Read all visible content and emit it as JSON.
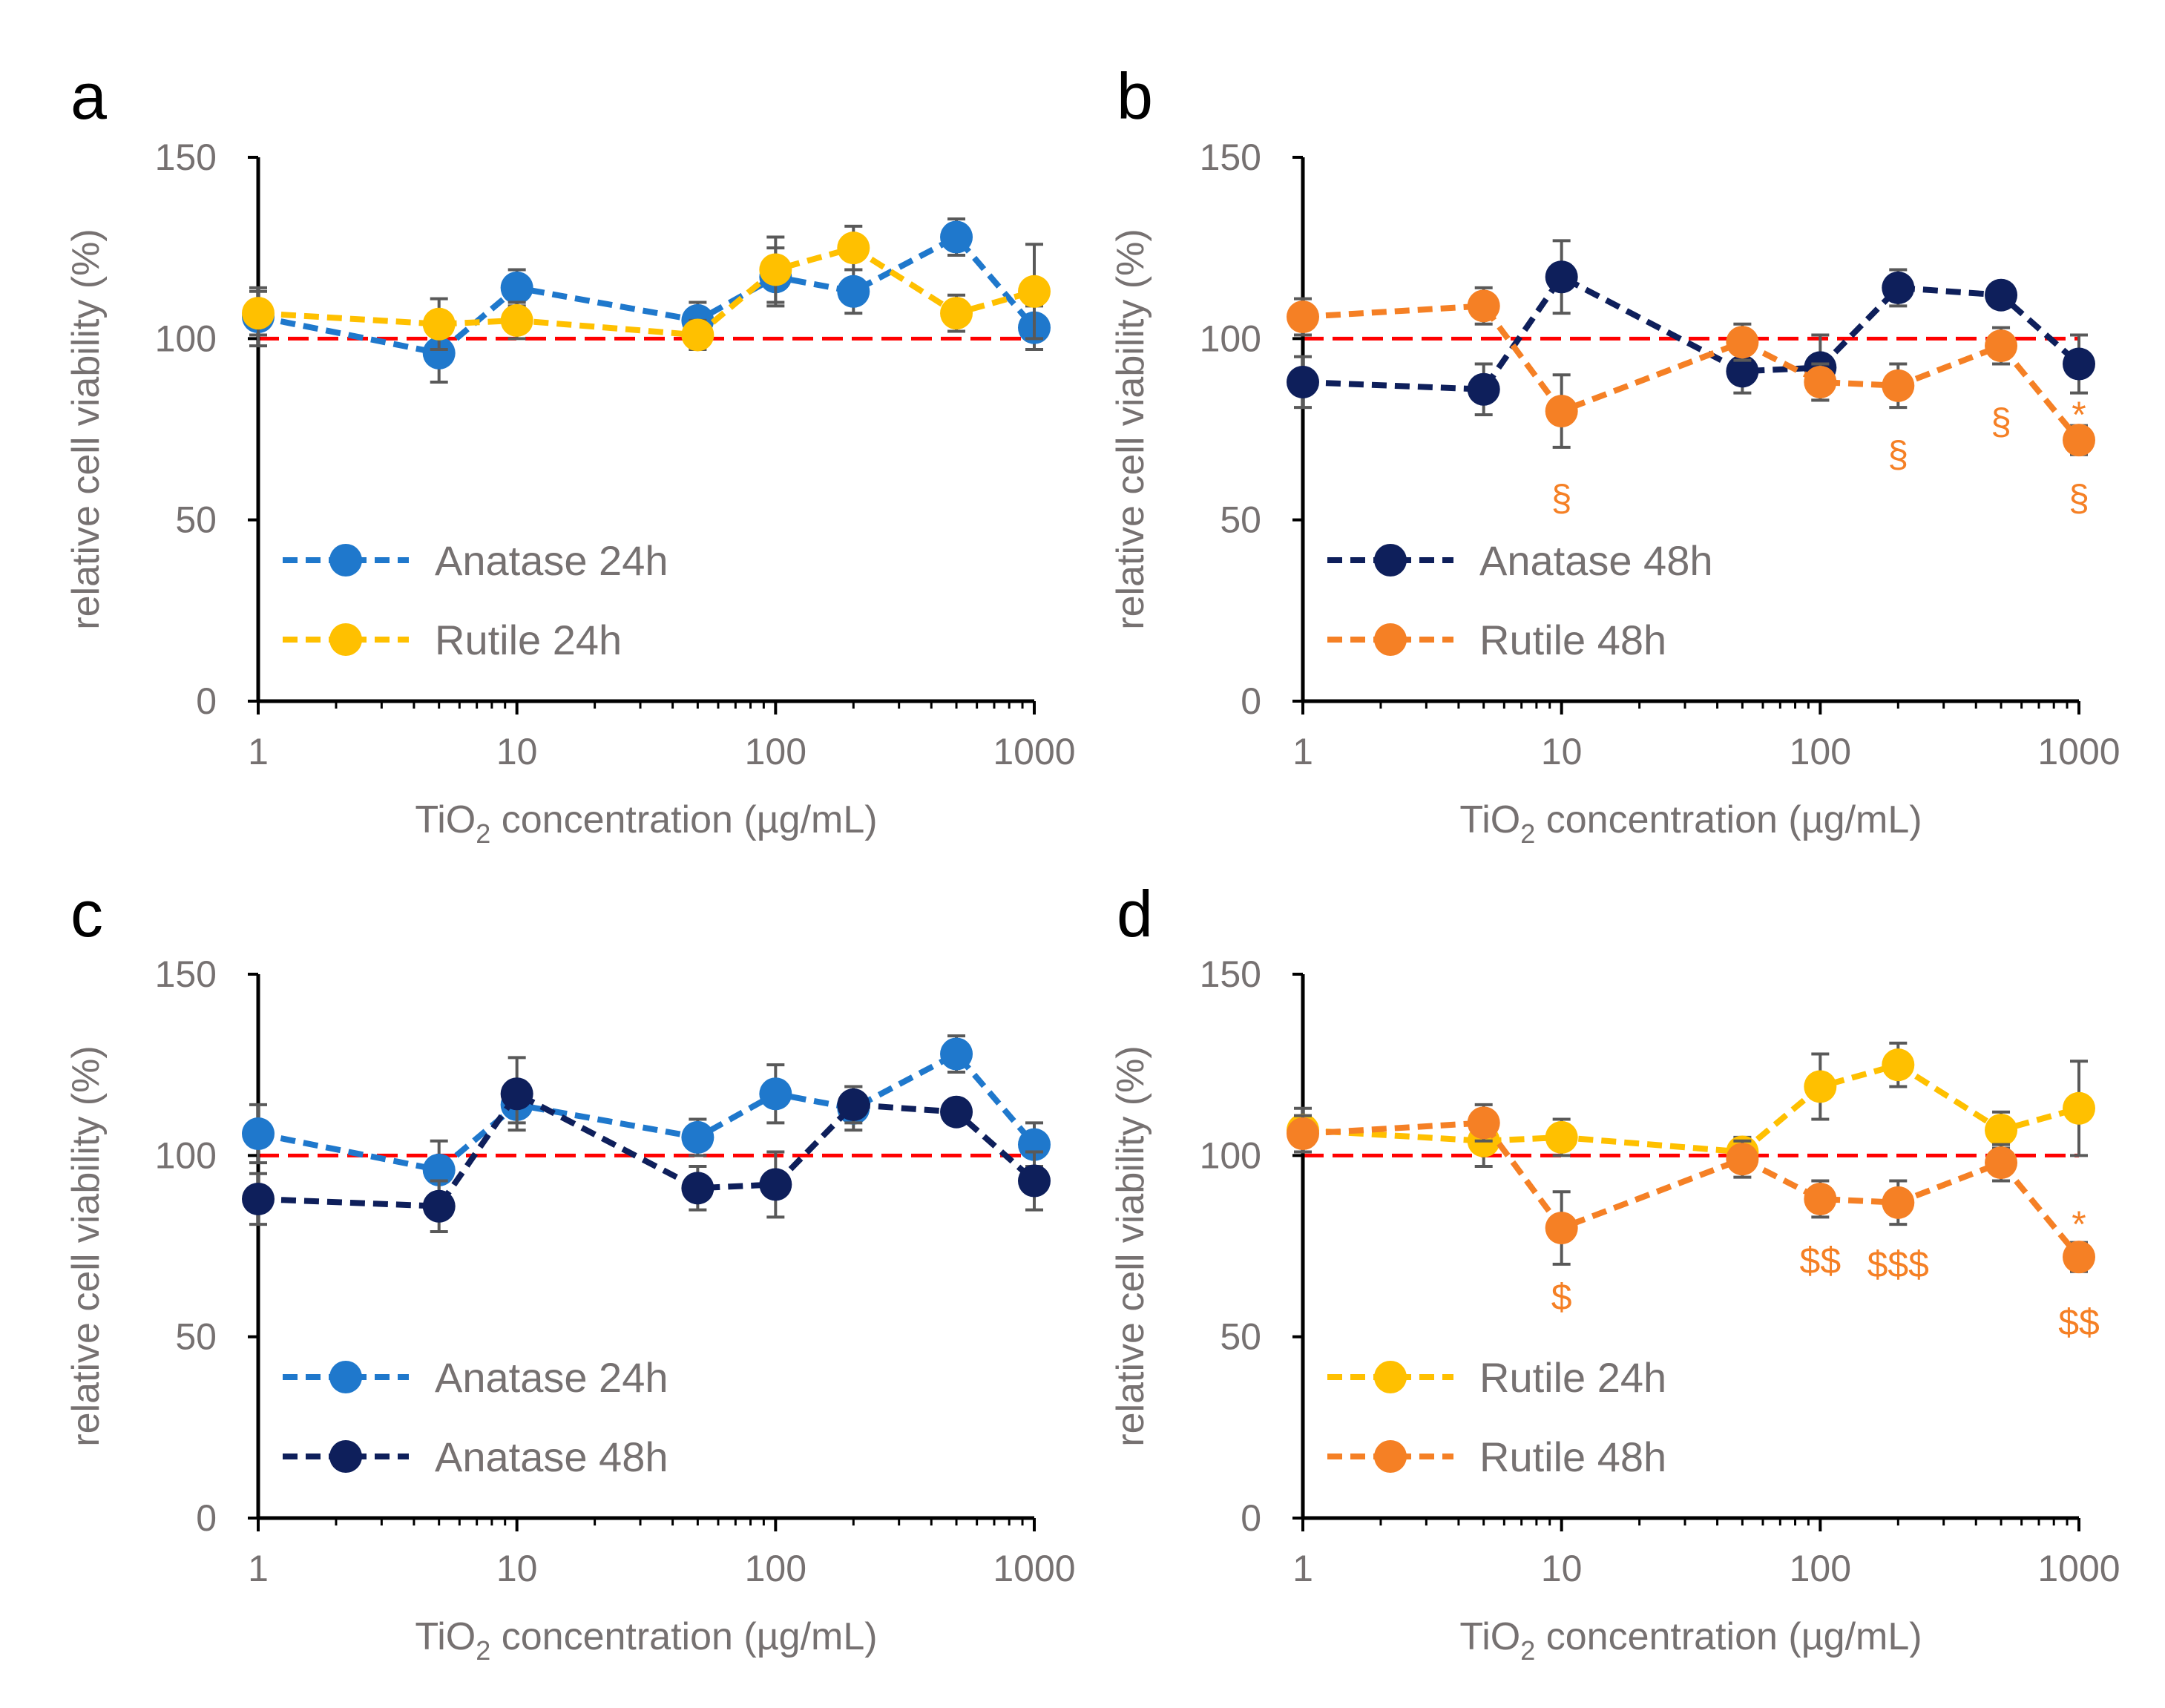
{
  "colors": {
    "anatase24": "#1F78CC",
    "rutile24": "#FFC000",
    "anatase48": "#0E1F5B",
    "rutile48": "#F58025",
    "reference": "#FF0000",
    "axis": "#000000",
    "text": "#767171",
    "errorbar": "#595959"
  },
  "chart_data": [
    {
      "panel": "a",
      "type": "line",
      "xscale": "log",
      "xlim": [
        1,
        1000
      ],
      "ylim": [
        0,
        150
      ],
      "yticks": [
        "0",
        "50",
        "100",
        "150"
      ],
      "xticks": [
        "1",
        "10",
        "100",
        "1000"
      ],
      "xlabel_pre": "TiO",
      "xlabel_sub": "2",
      "xlabel_post": " concentration (µg/mL)",
      "ylabel": "relative cell viability (%)",
      "reference_line": 100,
      "legend_position": "lower-left",
      "series": [
        {
          "name": "Anatase 24h",
          "color_key": "anatase24",
          "x": [
            1,
            5,
            10,
            50,
            100,
            200,
            500,
            1000
          ],
          "y": [
            106,
            96,
            114,
            105,
            117,
            113,
            128,
            103
          ],
          "err": [
            8,
            8,
            5,
            5,
            8,
            6,
            5,
            6
          ]
        },
        {
          "name": "Rutile 24h",
          "color_key": "rutile24",
          "x": [
            1,
            5,
            10,
            50,
            100,
            200,
            500,
            1000
          ],
          "y": [
            107,
            104,
            105,
            101,
            119,
            125,
            107,
            113
          ],
          "err": [
            6,
            7,
            5,
            4,
            9,
            6,
            5,
            13
          ]
        }
      ],
      "annotations": []
    },
    {
      "panel": "b",
      "type": "line",
      "xscale": "log",
      "xlim": [
        1,
        1000
      ],
      "ylim": [
        0,
        150
      ],
      "yticks": [
        "0",
        "50",
        "100",
        "150"
      ],
      "xticks": [
        "1",
        "10",
        "100",
        "1000"
      ],
      "xlabel_pre": "TiO",
      "xlabel_sub": "2",
      "xlabel_post": " concentration (µg/mL)",
      "ylabel": "relative cell viability (%)",
      "reference_line": 100,
      "legend_position": "lower-left",
      "series": [
        {
          "name": "Anatase 48h",
          "color_key": "anatase48",
          "x": [
            1,
            5,
            10,
            50,
            100,
            200,
            500,
            1000
          ],
          "y": [
            88,
            86,
            117,
            91,
            92,
            114,
            112,
            93
          ],
          "err": [
            7,
            7,
            10,
            6,
            9,
            5,
            3,
            8
          ]
        },
        {
          "name": "Rutile 48h",
          "color_key": "rutile48",
          "x": [
            1,
            5,
            10,
            50,
            100,
            200,
            500,
            1000
          ],
          "y": [
            106,
            109,
            80,
            99,
            88,
            87,
            98,
            72
          ],
          "err": [
            5,
            5,
            10,
            5,
            5,
            6,
            5,
            4
          ]
        }
      ],
      "annotations": [
        {
          "x": 10,
          "y": 56,
          "text": "§",
          "color_key": "rutile48"
        },
        {
          "x": 200,
          "y": 68,
          "text": "§",
          "color_key": "rutile48"
        },
        {
          "x": 500,
          "y": 77,
          "text": "§",
          "color_key": "rutile48"
        },
        {
          "x": 1000,
          "y": 79,
          "text": "*",
          "color_key": "rutile48"
        },
        {
          "x": 1000,
          "y": 56,
          "text": "§",
          "color_key": "rutile48"
        }
      ]
    },
    {
      "panel": "c",
      "type": "line",
      "xscale": "log",
      "xlim": [
        1,
        1000
      ],
      "ylim": [
        0,
        150
      ],
      "yticks": [
        "0",
        "50",
        "100",
        "150"
      ],
      "xticks": [
        "1",
        "10",
        "100",
        "1000"
      ],
      "xlabel_pre": "TiO",
      "xlabel_sub": "2",
      "xlabel_post": " concentration (µg/mL)",
      "ylabel": "relative cell viability (%)",
      "reference_line": 100,
      "legend_position": "lower-left",
      "series": [
        {
          "name": "Anatase 24h",
          "color_key": "anatase24",
          "x": [
            1,
            5,
            10,
            50,
            100,
            200,
            500,
            1000
          ],
          "y": [
            106,
            96,
            114,
            105,
            117,
            113,
            128,
            103
          ],
          "err": [
            8,
            8,
            5,
            5,
            8,
            6,
            5,
            6
          ]
        },
        {
          "name": "Anatase 48h",
          "color_key": "anatase48",
          "x": [
            1,
            5,
            10,
            50,
            100,
            200,
            500,
            1000
          ],
          "y": [
            88,
            86,
            117,
            91,
            92,
            114,
            112,
            93
          ],
          "err": [
            7,
            7,
            10,
            6,
            9,
            5,
            3,
            8
          ]
        }
      ],
      "annotations": []
    },
    {
      "panel": "d",
      "type": "line",
      "xscale": "log",
      "xlim": [
        1,
        1000
      ],
      "ylim": [
        0,
        150
      ],
      "yticks": [
        "0",
        "50",
        "100",
        "150"
      ],
      "xticks": [
        "1",
        "10",
        "100",
        "1000"
      ],
      "xlabel_pre": "TiO",
      "xlabel_sub": "2",
      "xlabel_post": " concentration (µg/mL)",
      "ylabel": "relative cell viability (%)",
      "reference_line": 100,
      "legend_position": "lower-left",
      "series": [
        {
          "name": "Rutile 24h",
          "color_key": "rutile24",
          "x": [
            1,
            5,
            10,
            50,
            100,
            200,
            500,
            1000
          ],
          "y": [
            107,
            104,
            105,
            101,
            119,
            125,
            107,
            113
          ],
          "err": [
            6,
            7,
            5,
            4,
            9,
            6,
            5,
            13
          ]
        },
        {
          "name": "Rutile 48h",
          "color_key": "rutile48",
          "x": [
            1,
            5,
            10,
            50,
            100,
            200,
            500,
            1000
          ],
          "y": [
            106,
            109,
            80,
            99,
            88,
            87,
            98,
            72
          ],
          "err": [
            5,
            5,
            10,
            5,
            5,
            6,
            5,
            4
          ]
        }
      ],
      "annotations": [
        {
          "x": 10,
          "y": 61,
          "text": "$",
          "color_key": "rutile48"
        },
        {
          "x": 100,
          "y": 71,
          "text": "$$",
          "color_key": "rutile48"
        },
        {
          "x": 200,
          "y": 70,
          "text": "$$$",
          "color_key": "rutile48"
        },
        {
          "x": 1000,
          "y": 81,
          "text": "*",
          "color_key": "rutile48"
        },
        {
          "x": 1000,
          "y": 54,
          "text": "$$",
          "color_key": "rutile48"
        }
      ]
    }
  ]
}
